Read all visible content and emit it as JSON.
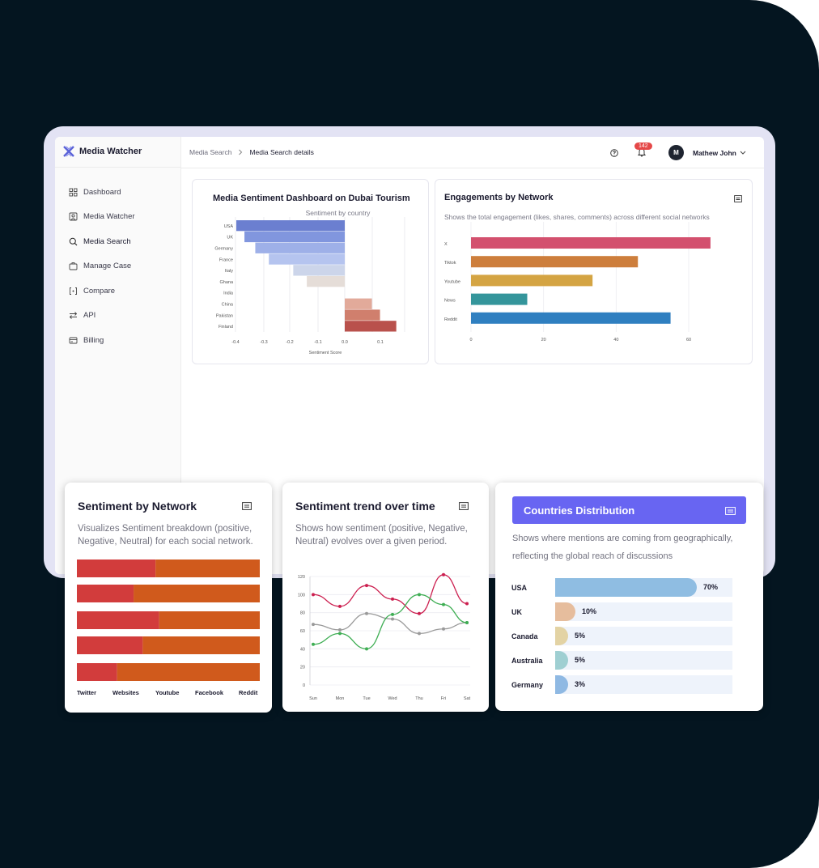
{
  "app": {
    "name": "Media Watcher"
  },
  "sidebar": {
    "items": [
      {
        "label": "Dashboard",
        "icon": "grid-icon"
      },
      {
        "label": "Media Watcher",
        "icon": "user-frame-icon"
      },
      {
        "label": "Media Search",
        "icon": "search-icon"
      },
      {
        "label": "Manage Case",
        "icon": "briefcase-icon"
      },
      {
        "label": "Compare",
        "icon": "compare-icon"
      },
      {
        "label": "API",
        "icon": "api-arrows-icon"
      },
      {
        "label": "Billing",
        "icon": "billing-icon"
      }
    ]
  },
  "header": {
    "breadcrumb": [
      "Media Search",
      "Media Search details"
    ],
    "notifications": "142",
    "user_initial": "M",
    "user_name": "Mathew John"
  },
  "chart_data": [
    {
      "type": "bar",
      "orientation": "horizontal",
      "title": "Media Sentiment Dashboard on Dubai Tourism",
      "subtitle": "Sentiment by country",
      "xlabel": "Sentiment Score",
      "categories": [
        "USA",
        "UK",
        "Germany",
        "France",
        "Italy",
        "Ghana",
        "India",
        "China",
        "Pakistan",
        "Finland"
      ],
      "values": [
        -0.4,
        -0.37,
        -0.33,
        -0.28,
        -0.19,
        -0.14,
        0,
        0.1,
        0.13,
        0.19
      ],
      "colors": [
        "#6b7fd0",
        "#8196de",
        "#9eb0e8",
        "#b5c4ef",
        "#ccd5ea",
        "#e5ddd8",
        "#ffffff",
        "#e2aa9a",
        "#d07f6d",
        "#b9514c"
      ],
      "xticks": [
        "-0.4",
        "-0.3",
        "-0.2",
        "-0.1",
        "0.0",
        "0.1"
      ]
    },
    {
      "type": "bar",
      "orientation": "horizontal",
      "title": "Engagements by Network",
      "subtitle": "Shows the total engagement (likes, shares, comments) across different social networks",
      "categories": [
        "X",
        "Tiktok",
        "Youtube",
        "News",
        "Reddit"
      ],
      "values": [
        66,
        46,
        33.5,
        15.5,
        55
      ],
      "colors": [
        "#d3506e",
        "#cd7e3c",
        "#d4a443",
        "#34959b",
        "#2f7fc0"
      ],
      "xticks": [
        "0",
        "20",
        "40",
        "60"
      ],
      "xlim": [
        0,
        70
      ]
    },
    {
      "type": "bar",
      "orientation": "horizontal-stacked",
      "title": "Sentiment by Network",
      "subtitle": "Visualizes Sentiment breakdown (positive, Negative, Neutral) for each social network.",
      "categories": [
        "Twitter",
        "Websites",
        "Youtube",
        "Facebook",
        "Reddit"
      ],
      "series": [
        {
          "values": [
            0.43,
            0.31,
            0.45,
            0.36,
            0.22
          ],
          "color": "#d23c3c"
        },
        {
          "values": [
            0.57,
            0.69,
            0.55,
            0.64,
            0.78
          ],
          "color": "#d05a1c"
        }
      ]
    },
    {
      "type": "line",
      "title": "Sentiment trend over time",
      "subtitle": "Shows how sentiment (positive, Negative, Neutral) evolves over a given period.",
      "x": [
        "Sun",
        "Mon",
        "Tue",
        "Wed",
        "Thu",
        "Fri",
        "Sat"
      ],
      "yticks": [
        "0",
        "20",
        "40",
        "60",
        "80",
        "100",
        "120"
      ],
      "ylim": [
        0,
        120
      ],
      "series": [
        {
          "values": [
            100,
            87,
            110,
            95,
            79,
            122,
            90
          ],
          "color": "#cc2050"
        },
        {
          "values": [
            67,
            61,
            79,
            73,
            57,
            62,
            69
          ],
          "color": "#9a9a9a"
        },
        {
          "values": [
            45,
            57,
            40,
            78,
            100,
            89,
            69
          ],
          "color": "#3fae54"
        }
      ]
    }
  ],
  "countries": {
    "title": "Countries Distribution",
    "subtitle": "Shows where mentions are coming from geographically, reflecting the global reach of discussions",
    "rows": [
      {
        "label": "USA",
        "value": 0.7,
        "pct": "70%",
        "color": "#8fbde2"
      },
      {
        "label": "UK",
        "value": 0.1,
        "pct": "10%",
        "color": "#e6bd9d"
      },
      {
        "label": "Canada",
        "value": 0.05,
        "pct": "5%",
        "color": "#e3d3a4"
      },
      {
        "label": "Australia",
        "value": 0.05,
        "pct": "5%",
        "color": "#9fcfd2"
      },
      {
        "label": "Germany",
        "value": 0.03,
        "pct": "3%",
        "color": "#8fb9e3"
      }
    ]
  }
}
